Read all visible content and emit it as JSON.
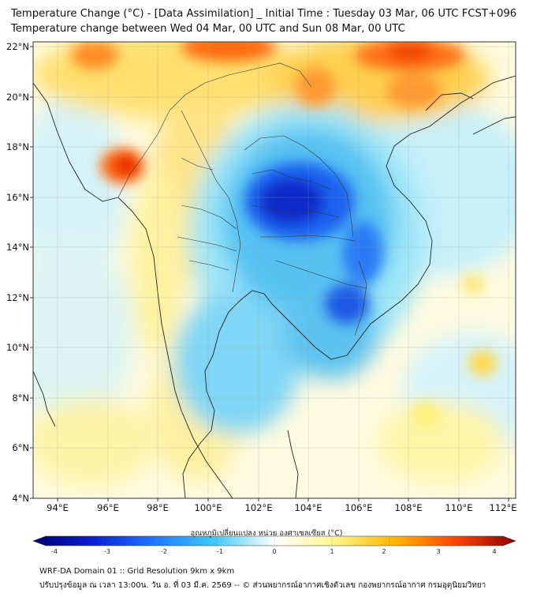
{
  "title": {
    "line1": "Temperature Change (°C) - [Data Assimilation] _ Initial Time : Tuesday 03 Mar, 06 UTC FCST+096",
    "line2": "Temperature change between Wed 04 Mar, 00 UTC and Sun 08 Mar, 00 UTC"
  },
  "map": {
    "lat_labels": [
      "22°N",
      "20°N",
      "18°N",
      "16°N",
      "14°N",
      "12°N",
      "10°N",
      "8°N",
      "6°N",
      "4°N"
    ],
    "lon_labels": [
      "94°E",
      "96°E",
      "98°E",
      "100°E",
      "102°E",
      "104°E",
      "106°E",
      "108°E",
      "110°E",
      "112°E"
    ]
  },
  "colorbar": {
    "title": "อุณหภูมิเปลี่ยนแปลง หน่วย องศาเซลเซียส (°C)",
    "ticks": [
      "-4",
      "-3",
      "-2",
      "-1",
      "0",
      "1",
      "2",
      "3",
      "4"
    ],
    "colors": {
      "neg4": "#00006e",
      "neg3": "#0a1ed2",
      "neg2": "#1e78ff",
      "neg1": "#41c8f5",
      "zero": "#ffffff",
      "pos1": "#fff58c",
      "pos2": "#ffb400",
      "pos3": "#ff4600",
      "pos4": "#8c0000"
    }
  },
  "footer": {
    "line1": "WRF-DA Domain 01 :: Grid Resolution 9km x 9km",
    "line2": "ปรับปรุงข้อมูล ณ เวลา 13:00น. วัน อ. ที่ 03 มี.ค. 2569 -- © ส่วนพยากรณ์อากาศเชิงตัวเลข กองพยากรณ์อากาศ กรมอุตุนิยมวิทยา"
  }
}
